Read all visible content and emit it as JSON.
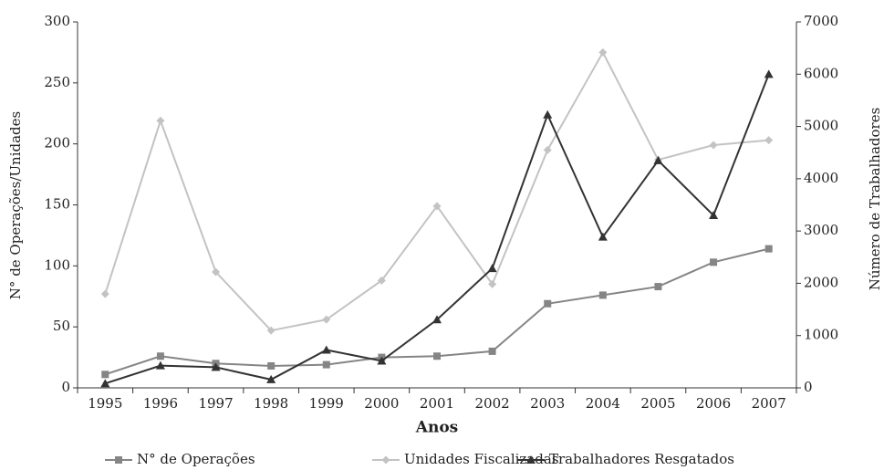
{
  "chart_data": {
    "type": "line",
    "xlabel": "Anos",
    "ylabel": "N° de Operações/Unidades",
    "y2label": "Número de Trabalhadores",
    "categories": [
      "1995",
      "1996",
      "1997",
      "1998",
      "1999",
      "2000",
      "2001",
      "2002",
      "2003",
      "2004",
      "2005",
      "2006",
      "2007"
    ],
    "series": [
      {
        "name": "N° de Operações",
        "color": "#858585",
        "marker": "square",
        "values": [
          11,
          26,
          20,
          18,
          19,
          25,
          26,
          30,
          69,
          76,
          83,
          103,
          114
        ]
      },
      {
        "name": "Unidades Fiscalizadas",
        "color": "#c3c3c3",
        "marker": "diamond",
        "values": [
          77,
          219,
          95,
          47,
          56,
          88,
          149,
          85,
          195,
          275,
          187,
          199,
          203
        ]
      },
      {
        "name": "Trabalhadores Resgatados",
        "color": "#333333",
        "marker": "triangle",
        "axis": "y2",
        "values": [
          84,
          425,
          394,
          159,
          725,
          516,
          1305,
          2285,
          5223,
          2887,
          4348,
          3300,
          5999
        ]
      }
    ],
    "ylim": [
      0,
      300
    ],
    "yticks": [
      0,
      50,
      100,
      150,
      200,
      250,
      300
    ],
    "y2lim": [
      0,
      7000
    ],
    "y2ticks": [
      0,
      1000,
      2000,
      3000,
      4000,
      5000,
      6000,
      7000
    ],
    "legend": "bottom"
  }
}
